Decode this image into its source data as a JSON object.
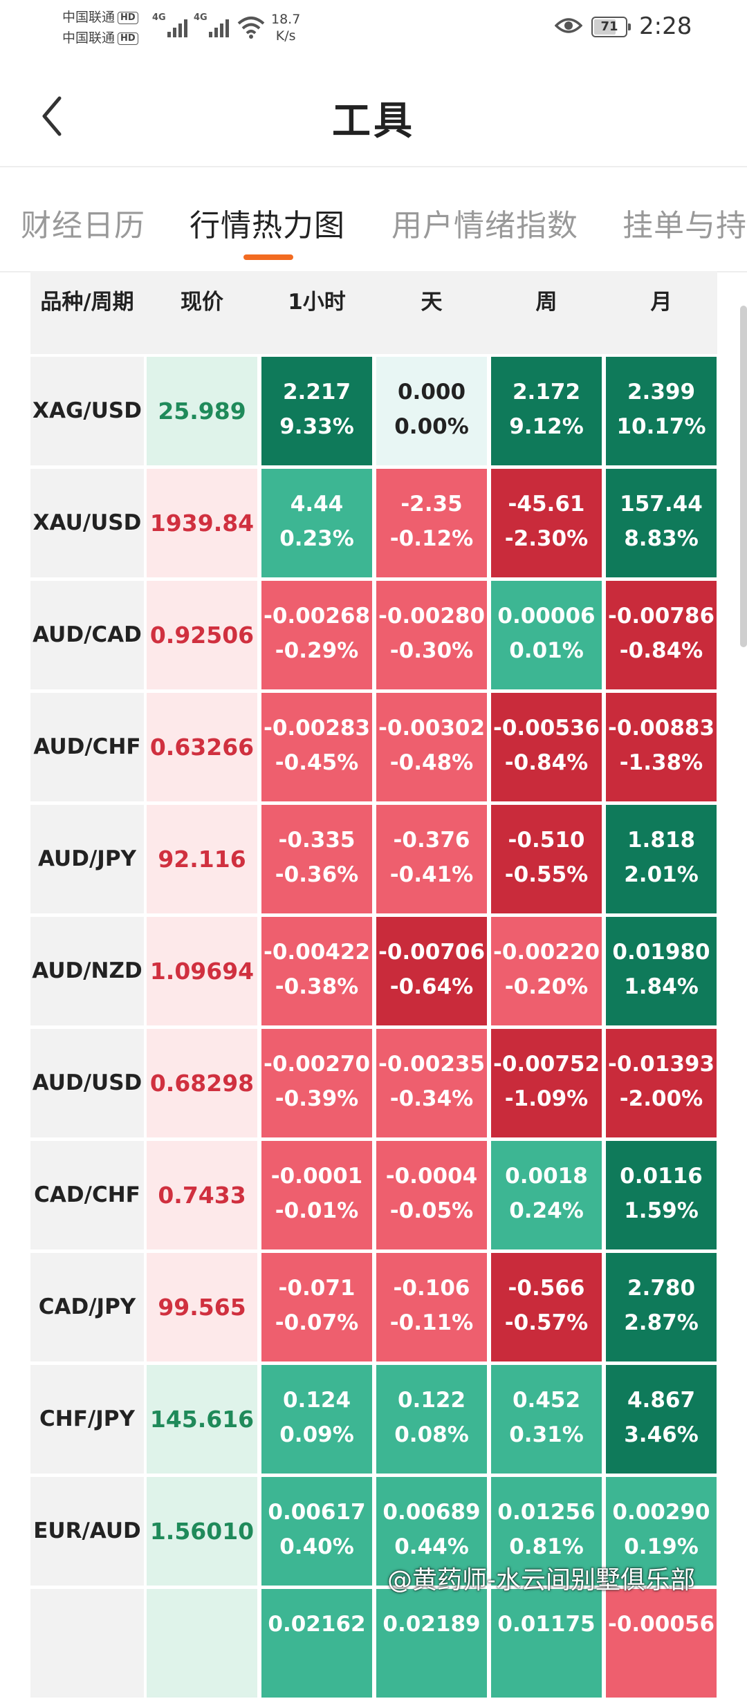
{
  "status_bar": {
    "carrier1": "中国联通",
    "carrier2": "中国联通",
    "hd": "HD",
    "net1": "4G",
    "net2": "4G",
    "speed_value": "18.7",
    "speed_unit": "K/s",
    "battery": "71",
    "battery_level": 0.71,
    "time": "2:28"
  },
  "header": {
    "title": "工具"
  },
  "tabs": [
    {
      "label": "财经日历",
      "active": false
    },
    {
      "label": "行情热力图",
      "active": true
    },
    {
      "label": "用户情绪指数",
      "active": false
    },
    {
      "label": "挂单与持",
      "active": false
    }
  ],
  "table": {
    "headers": [
      "品种/周期",
      "现价",
      "1小时",
      "天",
      "周",
      "月"
    ],
    "rows": [
      {
        "symbol": "XAG/USD",
        "price": "25.989",
        "trend": "up",
        "cells": [
          [
            "2.217",
            "9.33%"
          ],
          [
            "0.000",
            "0.00%"
          ],
          [
            "2.172",
            "9.12%"
          ],
          [
            "2.399",
            "10.17%"
          ]
        ]
      },
      {
        "symbol": "XAU/USD",
        "price": "1939.84",
        "trend": "down",
        "cells": [
          [
            "4.44",
            "0.23%"
          ],
          [
            "-2.35",
            "-0.12%"
          ],
          [
            "-45.61",
            "-2.30%"
          ],
          [
            "157.44",
            "8.83%"
          ]
        ]
      },
      {
        "symbol": "AUD/CAD",
        "price": "0.92506",
        "trend": "down",
        "cells": [
          [
            "-0.00268",
            "-0.29%"
          ],
          [
            "-0.00280",
            "-0.30%"
          ],
          [
            "0.00006",
            "0.01%"
          ],
          [
            "-0.00786",
            "-0.84%"
          ]
        ]
      },
      {
        "symbol": "AUD/CHF",
        "price": "0.63266",
        "trend": "down",
        "cells": [
          [
            "-0.00283",
            "-0.45%"
          ],
          [
            "-0.00302",
            "-0.48%"
          ],
          [
            "-0.00536",
            "-0.84%"
          ],
          [
            "-0.00883",
            "-1.38%"
          ]
        ]
      },
      {
        "symbol": "AUD/JPY",
        "price": "92.116",
        "trend": "down",
        "cells": [
          [
            "-0.335",
            "-0.36%"
          ],
          [
            "-0.376",
            "-0.41%"
          ],
          [
            "-0.510",
            "-0.55%"
          ],
          [
            "1.818",
            "2.01%"
          ]
        ]
      },
      {
        "symbol": "AUD/NZD",
        "price": "1.09694",
        "trend": "down",
        "cells": [
          [
            "-0.00422",
            "-0.38%"
          ],
          [
            "-0.00706",
            "-0.64%"
          ],
          [
            "-0.00220",
            "-0.20%"
          ],
          [
            "0.01980",
            "1.84%"
          ]
        ]
      },
      {
        "symbol": "AUD/USD",
        "price": "0.68298",
        "trend": "down",
        "cells": [
          [
            "-0.00270",
            "-0.39%"
          ],
          [
            "-0.00235",
            "-0.34%"
          ],
          [
            "-0.00752",
            "-1.09%"
          ],
          [
            "-0.01393",
            "-2.00%"
          ]
        ]
      },
      {
        "symbol": "CAD/CHF",
        "price": "0.7433",
        "trend": "down",
        "cells": [
          [
            "-0.0001",
            "-0.01%"
          ],
          [
            "-0.0004",
            "-0.05%"
          ],
          [
            "0.0018",
            "0.24%"
          ],
          [
            "0.0116",
            "1.59%"
          ]
        ]
      },
      {
        "symbol": "CAD/JPY",
        "price": "99.565",
        "trend": "down",
        "cells": [
          [
            "-0.071",
            "-0.07%"
          ],
          [
            "-0.106",
            "-0.11%"
          ],
          [
            "-0.566",
            "-0.57%"
          ],
          [
            "2.780",
            "2.87%"
          ]
        ]
      },
      {
        "symbol": "CHF/JPY",
        "price": "145.616",
        "trend": "up",
        "cells": [
          [
            "0.124",
            "0.09%"
          ],
          [
            "0.122",
            "0.08%"
          ],
          [
            "0.452",
            "0.31%"
          ],
          [
            "4.867",
            "3.46%"
          ]
        ]
      },
      {
        "symbol": "EUR/AUD",
        "price": "1.56010",
        "trend": "up",
        "cells": [
          [
            "0.00617",
            "0.40%"
          ],
          [
            "0.00689",
            "0.44%"
          ],
          [
            "0.01256",
            "0.81%"
          ],
          [
            "0.00290",
            "0.19%"
          ]
        ]
      },
      {
        "symbol": "",
        "price": "",
        "trend": "up",
        "cells": [
          [
            "0.02162",
            ""
          ],
          [
            "0.02189",
            ""
          ],
          [
            "0.01175",
            ""
          ],
          [
            "-0.00056",
            ""
          ]
        ]
      }
    ]
  },
  "colors": {
    "up_strong": "#0f7a5a",
    "up_medium": "#3db693",
    "neutral": "#e8f6f4",
    "down_medium": "#ee5f6e",
    "down_strong": "#c92b3b",
    "price_up_text": "#1f8a5a",
    "price_down_text": "#d0303f",
    "price_up_bg": "#dff3ea",
    "price_down_bg": "#fde9ea",
    "accent": "#f26b21"
  },
  "watermark": "@黄药师-水云间别墅俱乐部"
}
